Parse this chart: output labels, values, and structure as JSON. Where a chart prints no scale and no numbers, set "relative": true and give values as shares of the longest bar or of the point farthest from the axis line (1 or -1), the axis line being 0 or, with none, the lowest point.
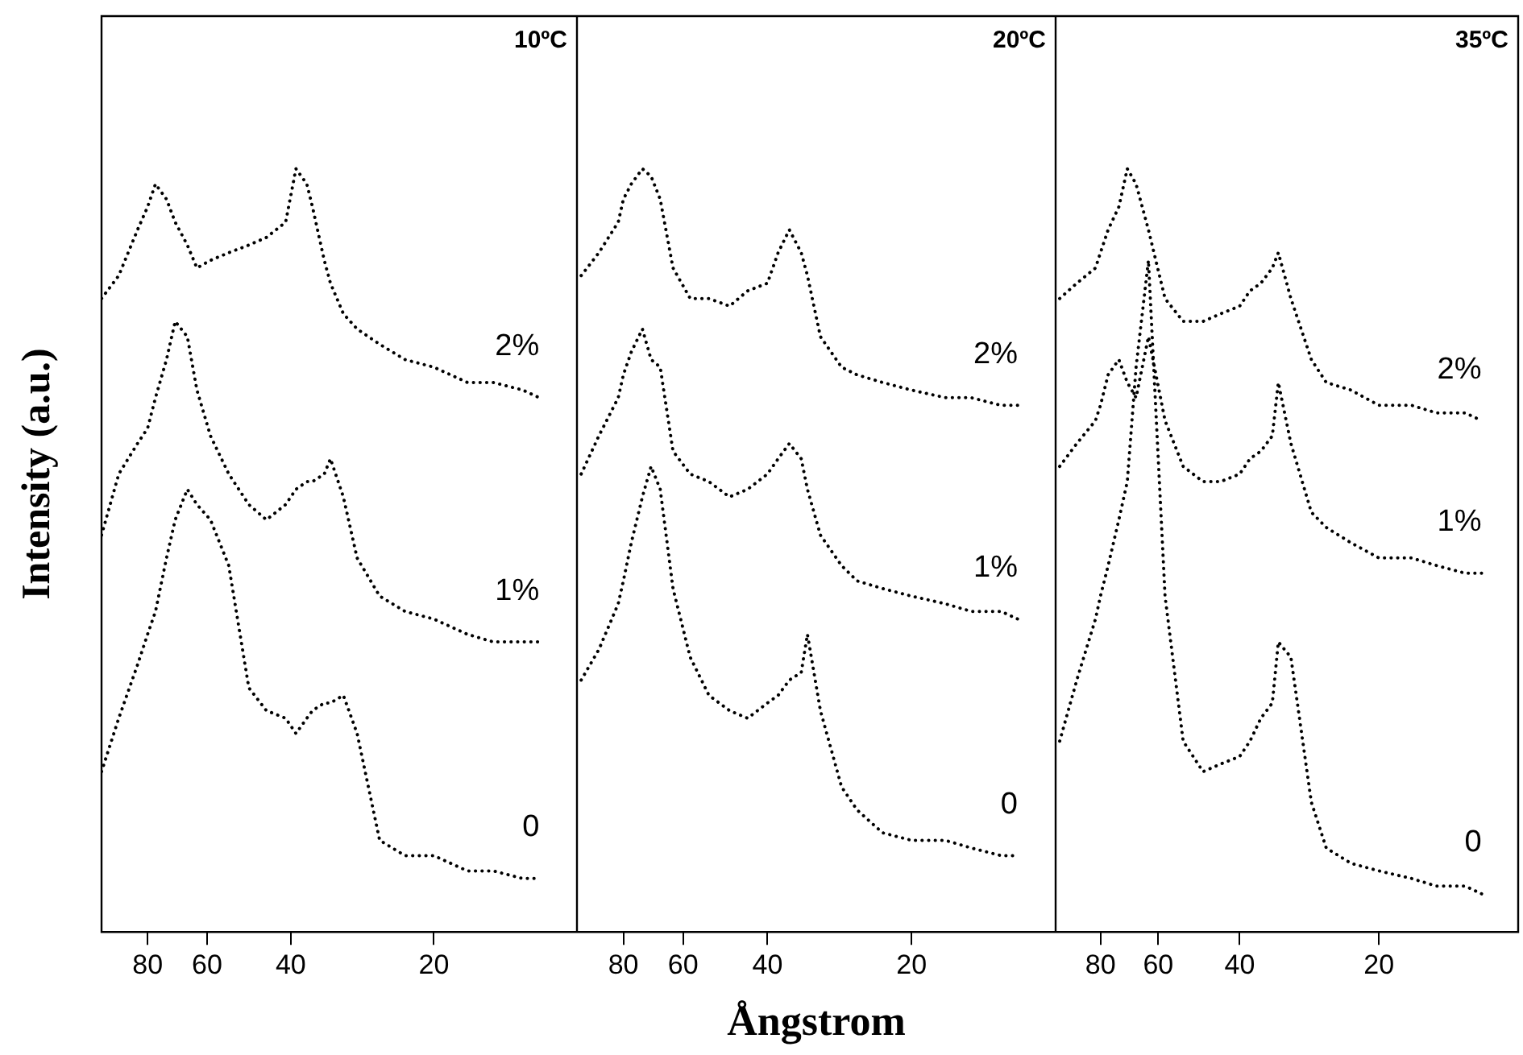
{
  "chart_data": [
    {
      "type": "line",
      "title": "10ºC",
      "ylabel": "Intensity (a.u.)",
      "log": "x",
      "relative": true,
      "marker": "none",
      "line_style": "dotted",
      "tick_labels": "x",
      "xlim": [
        100,
        10
      ],
      "xticks": [
        80,
        60,
        40,
        20
      ],
      "x": [
        100,
        92,
        84,
        80,
        77,
        73,
        70,
        66,
        63,
        59,
        54,
        49,
        45,
        41,
        39,
        37,
        36,
        34,
        33,
        31,
        29,
        26,
        23,
        20,
        17,
        15,
        13,
        12
      ],
      "series": [
        {
          "name": "2%",
          "color": "#000000",
          "values": [
            0.83,
            0.86,
            0.92,
            0.95,
            0.98,
            0.96,
            0.93,
            0.9,
            0.87,
            0.88,
            0.89,
            0.9,
            0.91,
            0.93,
            1.0,
            0.98,
            0.95,
            0.88,
            0.85,
            0.81,
            0.79,
            0.77,
            0.75,
            0.74,
            0.72,
            0.72,
            0.71,
            0.7
          ]
        },
        {
          "name": "1%",
          "color": "#000000",
          "values": [
            0.52,
            0.6,
            0.64,
            0.66,
            0.7,
            0.75,
            0.8,
            0.78,
            0.71,
            0.65,
            0.6,
            0.56,
            0.54,
            0.56,
            0.58,
            0.59,
            0.59,
            0.6,
            0.62,
            0.57,
            0.49,
            0.44,
            0.42,
            0.41,
            0.39,
            0.38,
            0.38,
            0.38
          ]
        },
        {
          "name": "0",
          "color": "#000000",
          "values": [
            0.21,
            0.28,
            0.35,
            0.39,
            0.42,
            0.49,
            0.54,
            0.58,
            0.56,
            0.54,
            0.48,
            0.32,
            0.29,
            0.28,
            0.26,
            0.28,
            0.29,
            0.3,
            0.3,
            0.31,
            0.26,
            0.12,
            0.1,
            0.1,
            0.08,
            0.08,
            0.07,
            0.07
          ]
        }
      ]
    },
    {
      "type": "line",
      "title": "20ºC",
      "xlabel": "Ångstrom",
      "log": "x",
      "relative": true,
      "marker": "none",
      "line_style": "dotted",
      "tick_labels": "x",
      "xlim": [
        100,
        10
      ],
      "xticks": [
        80,
        60,
        40,
        20
      ],
      "x": [
        98,
        90,
        82,
        80,
        77,
        73,
        70,
        67,
        63,
        58,
        53,
        48,
        44,
        40,
        38,
        36,
        34,
        33,
        31,
        28,
        26,
        23,
        20,
        17,
        15,
        13,
        12
      ],
      "series": [
        {
          "name": "2%",
          "color": "#000000",
          "values": [
            0.86,
            0.89,
            0.93,
            0.96,
            0.98,
            1.0,
            0.99,
            0.96,
            0.87,
            0.83,
            0.83,
            0.82,
            0.84,
            0.85,
            0.89,
            0.92,
            0.89,
            0.86,
            0.78,
            0.74,
            0.73,
            0.72,
            0.71,
            0.7,
            0.7,
            0.69,
            0.69
          ]
        },
        {
          "name": "1%",
          "color": "#000000",
          "values": [
            0.6,
            0.65,
            0.7,
            0.73,
            0.76,
            0.79,
            0.75,
            0.74,
            0.63,
            0.6,
            0.59,
            0.57,
            0.58,
            0.6,
            0.62,
            0.64,
            0.62,
            0.58,
            0.52,
            0.48,
            0.46,
            0.45,
            0.44,
            0.43,
            0.42,
            0.42,
            0.41
          ]
        },
        {
          "name": "0",
          "color": "#000000",
          "values": [
            0.33,
            0.37,
            0.43,
            0.46,
            0.51,
            0.57,
            0.61,
            0.58,
            0.45,
            0.36,
            0.31,
            0.29,
            0.28,
            0.3,
            0.31,
            0.33,
            0.34,
            0.39,
            0.29,
            0.19,
            0.16,
            0.13,
            0.12,
            0.12,
            0.11,
            0.1,
            0.1
          ]
        }
      ]
    },
    {
      "type": "line",
      "title": "35ºC",
      "log": "x",
      "relative": true,
      "marker": "none",
      "line_style": "dotted",
      "tick_labels": "x",
      "xlim": [
        100,
        10
      ],
      "xticks": [
        80,
        60,
        40,
        20
      ],
      "x": [
        98,
        90,
        82,
        80,
        77,
        73,
        70,
        67,
        63,
        58,
        53,
        48,
        44,
        40,
        38,
        36,
        34,
        33,
        31,
        28,
        26,
        23,
        20,
        17,
        15,
        13,
        12
      ],
      "series": [
        {
          "name": "2%",
          "color": "#000000",
          "values": [
            0.83,
            0.85,
            0.87,
            0.89,
            0.92,
            0.95,
            1.0,
            0.98,
            0.92,
            0.83,
            0.8,
            0.8,
            0.81,
            0.82,
            0.84,
            0.85,
            0.87,
            0.89,
            0.83,
            0.75,
            0.72,
            0.71,
            0.69,
            0.69,
            0.68,
            0.68,
            0.67
          ]
        },
        {
          "name": "1%",
          "color": "#000000",
          "values": [
            0.61,
            0.64,
            0.67,
            0.69,
            0.73,
            0.75,
            0.72,
            0.7,
            0.78,
            0.67,
            0.61,
            0.59,
            0.59,
            0.6,
            0.62,
            0.63,
            0.65,
            0.72,
            0.64,
            0.55,
            0.53,
            0.51,
            0.49,
            0.49,
            0.48,
            0.47,
            0.47
          ]
        },
        {
          "name": "0",
          "color": "#000000",
          "values": [
            0.25,
            0.33,
            0.41,
            0.44,
            0.48,
            0.54,
            0.59,
            0.74,
            0.88,
            0.44,
            0.25,
            0.21,
            0.22,
            0.23,
            0.25,
            0.28,
            0.3,
            0.38,
            0.36,
            0.17,
            0.11,
            0.09,
            0.08,
            0.07,
            0.06,
            0.06,
            0.05
          ]
        }
      ]
    }
  ]
}
